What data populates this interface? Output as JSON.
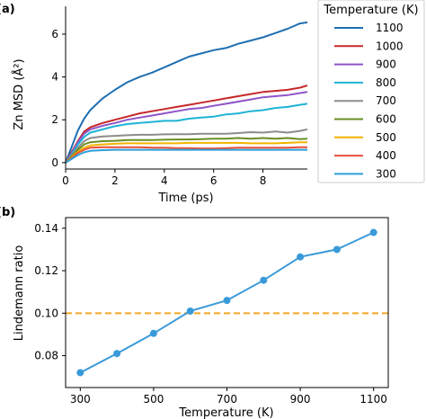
{
  "panel_labels": [
    "(a)",
    "(b)"
  ],
  "colors": {
    "1100": "#1f6fb2",
    "1000": "#c62828",
    "900": "#8e55c7",
    "800": "#1fb3d6",
    "700": "#8c8c8c",
    "600": "#6b8e23",
    "500": "#f2b300",
    "400": "#e8503a",
    "300": "#2e9fd8",
    "lindemann_line": "#3a9ad9",
    "threshold": "#f5a623"
  },
  "chart_data": [
    {
      "type": "line",
      "panel": "(a)",
      "title": "",
      "xlabel": "Time (ps)",
      "ylabel": "Zn MSD (Å²)",
      "xlim": [
        0,
        9.8
      ],
      "ylim": [
        -0.3,
        7.3
      ],
      "xticks": [
        0,
        2,
        4,
        6,
        8
      ],
      "yticks": [
        0,
        2,
        4,
        6
      ],
      "legend": {
        "title": "Temperature (K)",
        "placement": "outside-right"
      },
      "x": [
        0,
        0.25,
        0.5,
        0.75,
        1,
        1.5,
        2,
        2.5,
        3,
        3.5,
        4,
        4.5,
        5,
        5.5,
        6,
        6.5,
        7,
        7.5,
        8,
        8.5,
        9,
        9.5,
        9.8
      ],
      "series": [
        {
          "name": "1100",
          "values": [
            0,
            0.75,
            1.5,
            2.05,
            2.45,
            3.0,
            3.4,
            3.75,
            4.0,
            4.2,
            4.45,
            4.7,
            4.95,
            5.1,
            5.25,
            5.35,
            5.55,
            5.7,
            5.85,
            6.05,
            6.25,
            6.5,
            6.55
          ]
        },
        {
          "name": "1000",
          "values": [
            0,
            0.5,
            1.0,
            1.45,
            1.65,
            1.85,
            2.0,
            2.15,
            2.3,
            2.4,
            2.5,
            2.6,
            2.7,
            2.8,
            2.9,
            3.0,
            3.1,
            3.2,
            3.3,
            3.35,
            3.4,
            3.5,
            3.6
          ]
        },
        {
          "name": "900",
          "values": [
            0,
            0.45,
            0.95,
            1.35,
            1.55,
            1.72,
            1.85,
            2.0,
            2.1,
            2.2,
            2.3,
            2.4,
            2.5,
            2.55,
            2.65,
            2.75,
            2.85,
            2.95,
            3.05,
            3.1,
            3.15,
            3.25,
            3.3
          ]
        },
        {
          "name": "800",
          "values": [
            0,
            0.4,
            0.85,
            1.2,
            1.4,
            1.55,
            1.7,
            1.8,
            1.85,
            1.9,
            1.95,
            1.95,
            2.05,
            2.1,
            2.15,
            2.25,
            2.3,
            2.4,
            2.45,
            2.55,
            2.6,
            2.7,
            2.75
          ]
        },
        {
          "name": "700",
          "values": [
            0,
            0.35,
            0.7,
            1.0,
            1.15,
            1.22,
            1.25,
            1.28,
            1.3,
            1.3,
            1.32,
            1.33,
            1.33,
            1.35,
            1.35,
            1.35,
            1.38,
            1.42,
            1.4,
            1.45,
            1.4,
            1.48,
            1.55
          ]
        },
        {
          "name": "600",
          "values": [
            0,
            0.3,
            0.6,
            0.85,
            0.95,
            1.0,
            1.02,
            1.05,
            1.05,
            1.05,
            1.07,
            1.08,
            1.08,
            1.1,
            1.12,
            1.12,
            1.15,
            1.12,
            1.15,
            1.12,
            1.15,
            1.1,
            1.12
          ]
        },
        {
          "name": "500",
          "values": [
            0,
            0.25,
            0.5,
            0.7,
            0.8,
            0.85,
            0.88,
            0.9,
            0.9,
            0.9,
            0.9,
            0.9,
            0.92,
            0.92,
            0.92,
            0.92,
            0.92,
            0.9,
            0.9,
            0.9,
            0.92,
            0.95,
            0.95
          ]
        },
        {
          "name": "400",
          "values": [
            0,
            0.22,
            0.45,
            0.6,
            0.7,
            0.72,
            0.72,
            0.72,
            0.72,
            0.7,
            0.7,
            0.68,
            0.68,
            0.66,
            0.66,
            0.68,
            0.7,
            0.7,
            0.7,
            0.7,
            0.7,
            0.72,
            0.72
          ]
        },
        {
          "name": "300",
          "values": [
            0,
            0.18,
            0.35,
            0.48,
            0.55,
            0.58,
            0.6,
            0.6,
            0.6,
            0.6,
            0.6,
            0.6,
            0.6,
            0.6,
            0.6,
            0.6,
            0.6,
            0.6,
            0.6,
            0.6,
            0.6,
            0.6,
            0.6
          ]
        }
      ]
    },
    {
      "type": "line",
      "panel": "(b)",
      "title": "",
      "xlabel": "Temperature (K)",
      "ylabel": "Lindemann ratio",
      "xlim": [
        260,
        1140
      ],
      "ylim": [
        0.065,
        0.145
      ],
      "xticks": [
        300,
        500,
        700,
        900,
        1100
      ],
      "yticks": [
        0.08,
        0.1,
        0.12,
        0.14
      ],
      "ytick_labels": [
        "0.08",
        "0.10",
        "0.12",
        "0.14"
      ],
      "x": [
        300,
        400,
        500,
        600,
        700,
        800,
        900,
        1000,
        1100
      ],
      "series": [
        {
          "values": [
            0.072,
            0.081,
            0.0905,
            0.101,
            0.106,
            0.1155,
            0.1265,
            0.13,
            0.138
          ]
        }
      ],
      "hline": {
        "y": 0.1,
        "style": "dashed"
      }
    }
  ]
}
